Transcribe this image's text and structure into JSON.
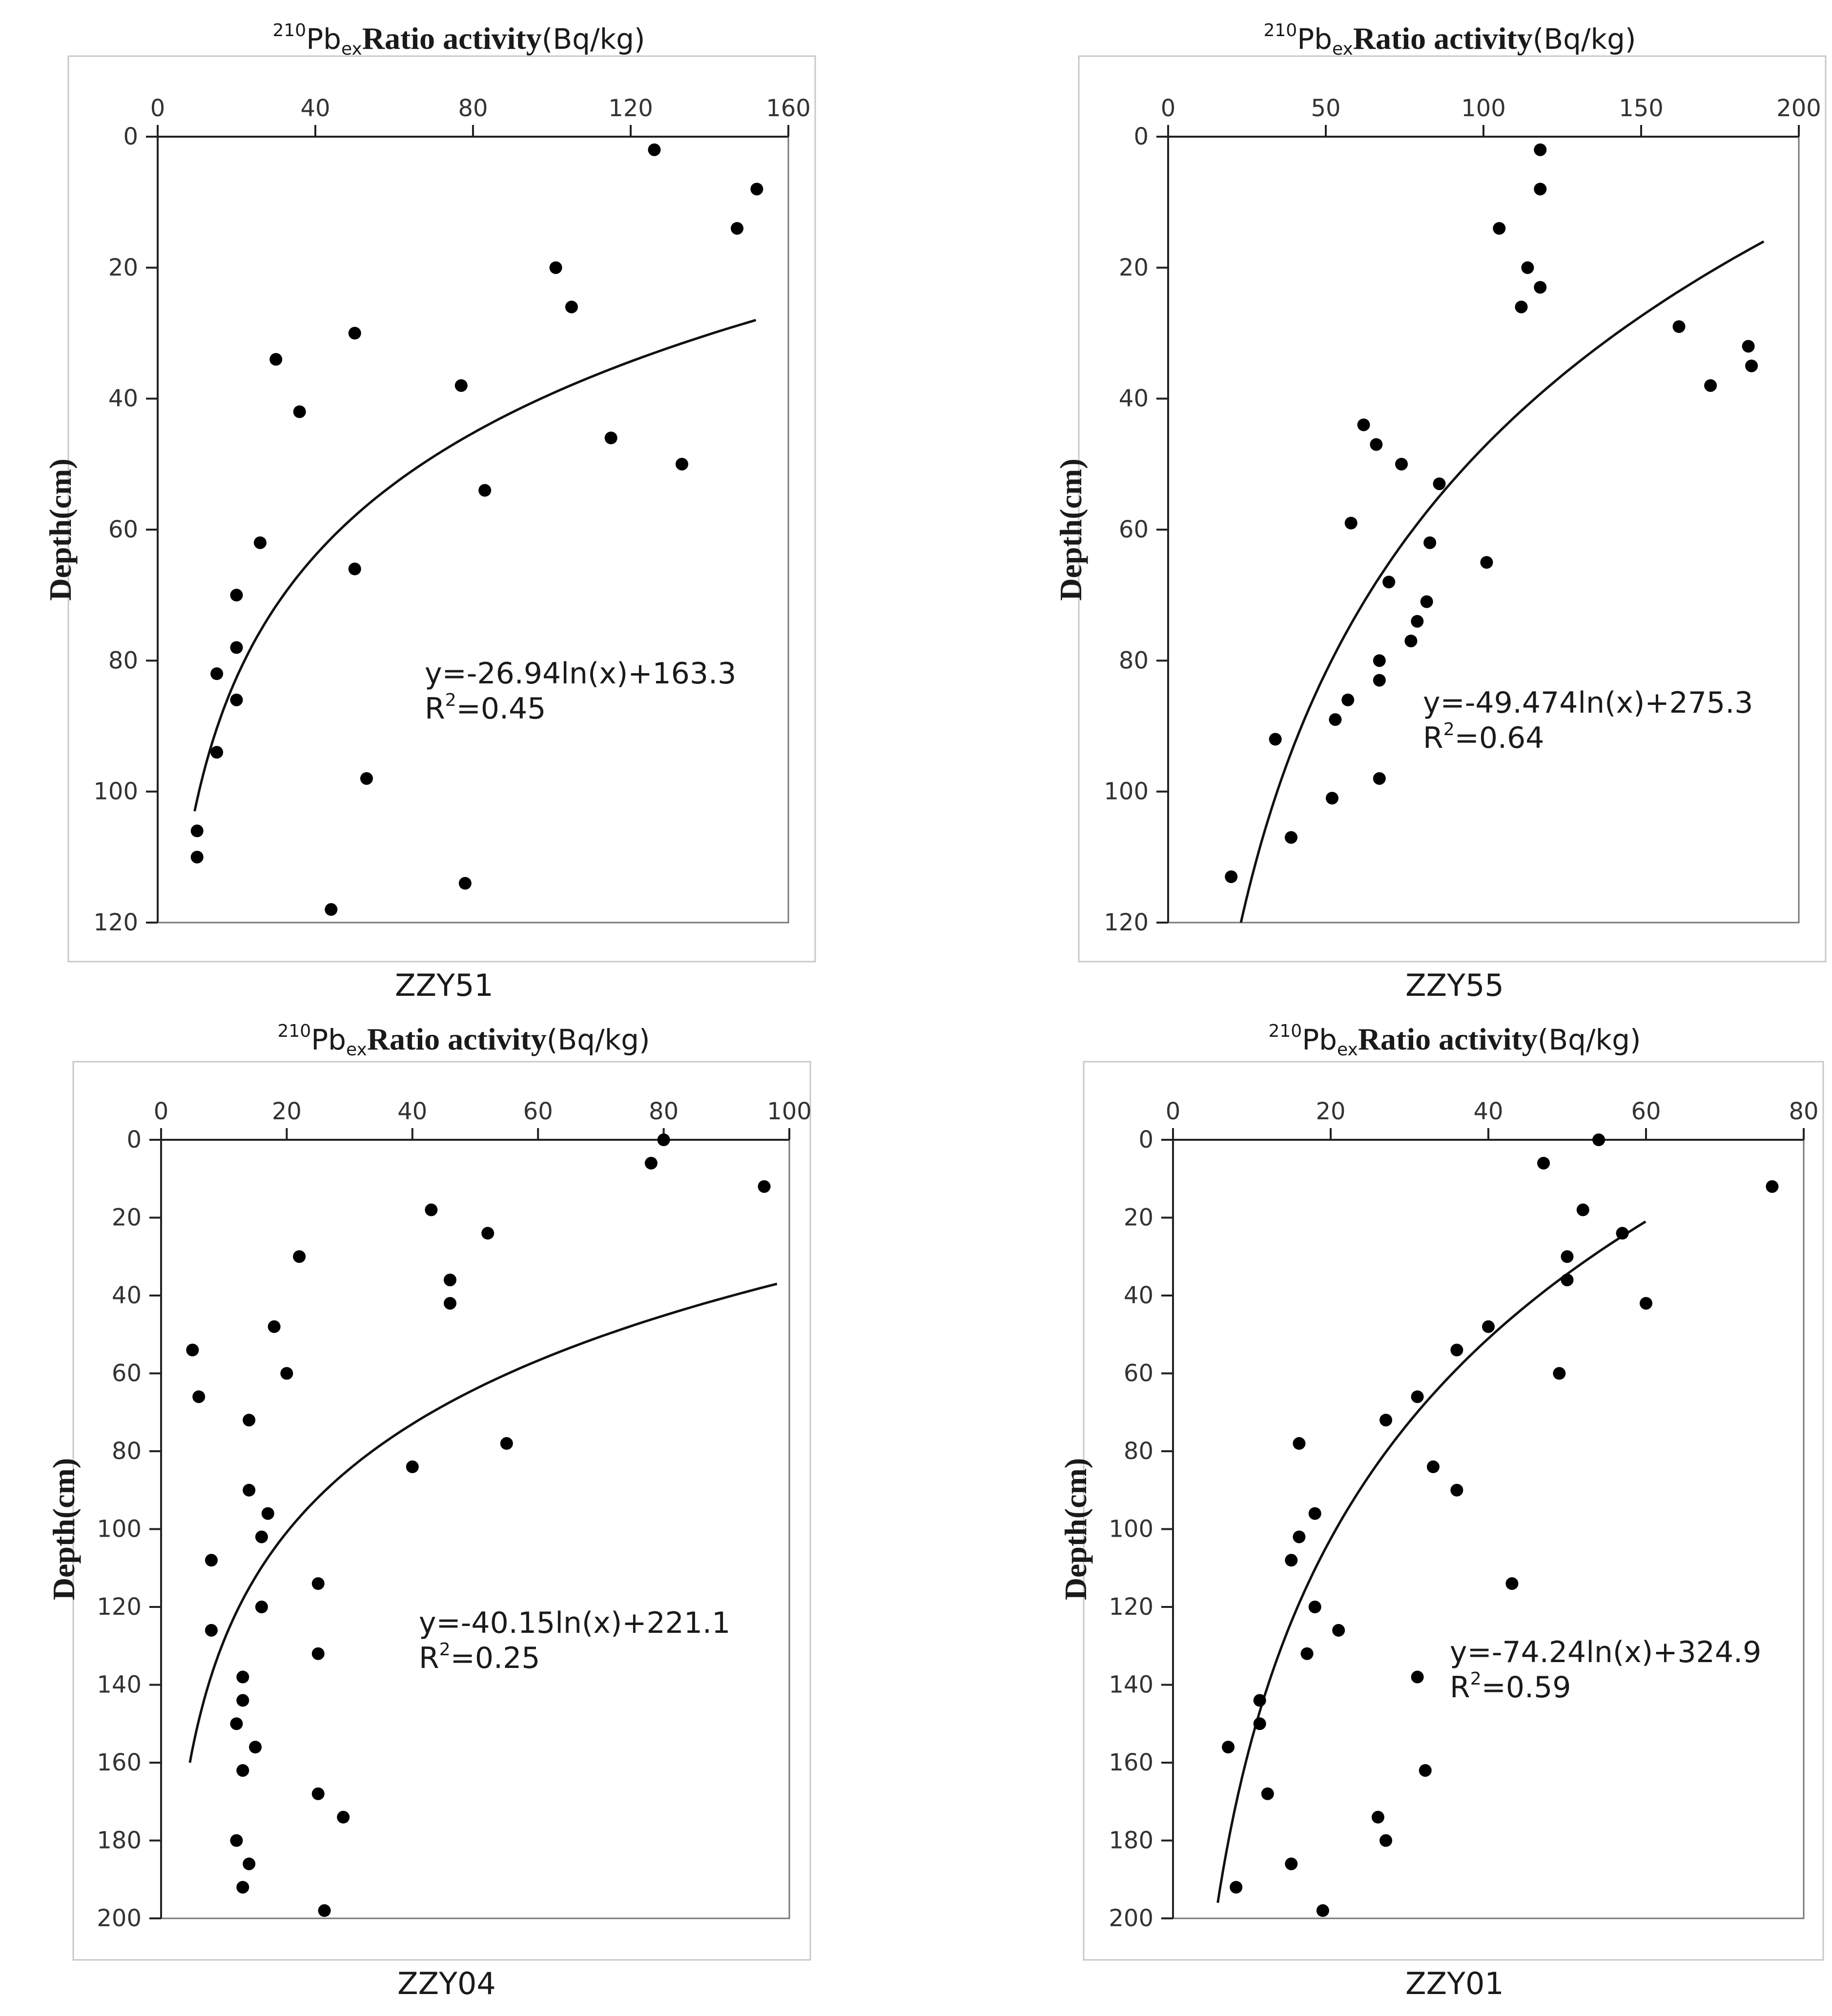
{
  "chart_data": [
    {
      "type": "scatter",
      "caption": "ZZY51",
      "title": {
        "sup": "210",
        "main": "Pb",
        "sub": "ex",
        "bold": "Ratio activity",
        "unit": "(Bq/kg)"
      },
      "ylabel": "Depth(cm)",
      "xlim": [
        0,
        160
      ],
      "ylim": [
        0,
        120
      ],
      "xticks": [
        0,
        40,
        80,
        120,
        160
      ],
      "yticks": [
        0,
        20,
        40,
        60,
        80,
        100,
        120
      ],
      "points": [
        [
          126,
          2
        ],
        [
          152,
          8
        ],
        [
          147,
          14
        ],
        [
          101,
          20
        ],
        [
          105,
          26
        ],
        [
          50,
          30
        ],
        [
          30,
          34
        ],
        [
          77,
          38
        ],
        [
          36,
          42
        ],
        [
          115,
          46
        ],
        [
          133,
          50
        ],
        [
          83,
          54
        ],
        [
          26,
          62
        ],
        [
          50,
          66
        ],
        [
          20,
          70
        ],
        [
          20,
          78
        ],
        [
          15,
          82
        ],
        [
          20,
          86
        ],
        [
          15,
          94
        ],
        [
          53,
          98
        ],
        [
          10,
          106
        ],
        [
          10,
          110
        ],
        [
          78,
          114
        ],
        [
          44,
          118
        ]
      ],
      "fit": {
        "a": -26.94,
        "b": 163.3,
        "ymin": 28,
        "ymax": 103
      },
      "equation": "y=-26.94ln(x)+163.3",
      "r2_prefix": "R",
      "r2_sup": "2",
      "r2_value": "=0.45"
    },
    {
      "type": "scatter",
      "caption": "ZZY55",
      "title": {
        "sup": "210",
        "main": "Pb",
        "sub": "ex",
        "bold": "Ratio activity",
        "unit": "(Bq/kg)"
      },
      "ylabel": "Depth(cm)",
      "xlim": [
        0,
        200
      ],
      "ylim": [
        0,
        120
      ],
      "xticks": [
        0,
        50,
        100,
        150,
        200
      ],
      "yticks": [
        0,
        20,
        40,
        60,
        80,
        100,
        120
      ],
      "points": [
        [
          118,
          2
        ],
        [
          118,
          8
        ],
        [
          105,
          14
        ],
        [
          114,
          20
        ],
        [
          118,
          23
        ],
        [
          112,
          26
        ],
        [
          162,
          29
        ],
        [
          184,
          32
        ],
        [
          185,
          35
        ],
        [
          172,
          38
        ],
        [
          62,
          44
        ],
        [
          66,
          47
        ],
        [
          74,
          50
        ],
        [
          86,
          53
        ],
        [
          58,
          59
        ],
        [
          83,
          62
        ],
        [
          101,
          65
        ],
        [
          70,
          68
        ],
        [
          82,
          71
        ],
        [
          79,
          74
        ],
        [
          77,
          77
        ],
        [
          67,
          80
        ],
        [
          67,
          83
        ],
        [
          57,
          86
        ],
        [
          53,
          89
        ],
        [
          34,
          92
        ],
        [
          67,
          98
        ],
        [
          52,
          101
        ],
        [
          39,
          107
        ],
        [
          20,
          113
        ]
      ],
      "fit": {
        "a": -49.474,
        "b": 275.3,
        "ymin": 16,
        "ymax": 120
      },
      "equation": "y=-49.474ln(x)+275.3",
      "r2_prefix": "R",
      "r2_sup": "2",
      "r2_value": "=0.64"
    },
    {
      "type": "scatter",
      "caption": "ZZY04",
      "title": {
        "sup": "210",
        "main": "Pb",
        "sub": "ex",
        "bold": "Ratio activity",
        "unit": "(Bq/kg)"
      },
      "ylabel": "Depth(cm)",
      "xlim": [
        0,
        100
      ],
      "ylim": [
        0,
        200
      ],
      "xticks": [
        0,
        20,
        40,
        60,
        80,
        100
      ],
      "yticks": [
        0,
        20,
        40,
        60,
        80,
        100,
        120,
        140,
        160,
        180,
        200
      ],
      "points": [
        [
          80,
          0
        ],
        [
          78,
          6
        ],
        [
          96,
          12
        ],
        [
          43,
          18
        ],
        [
          52,
          24
        ],
        [
          22,
          30
        ],
        [
          46,
          36
        ],
        [
          46,
          42
        ],
        [
          18,
          48
        ],
        [
          5,
          54
        ],
        [
          20,
          60
        ],
        [
          6,
          66
        ],
        [
          14,
          72
        ],
        [
          55,
          78
        ],
        [
          40,
          84
        ],
        [
          14,
          90
        ],
        [
          17,
          96
        ],
        [
          16,
          102
        ],
        [
          8,
          108
        ],
        [
          25,
          114
        ],
        [
          16,
          120
        ],
        [
          8,
          126
        ],
        [
          25,
          132
        ],
        [
          13,
          138
        ],
        [
          13,
          144
        ],
        [
          12,
          150
        ],
        [
          15,
          156
        ],
        [
          13,
          162
        ],
        [
          25,
          168
        ],
        [
          29,
          174
        ],
        [
          12,
          180
        ],
        [
          14,
          186
        ],
        [
          13,
          192
        ],
        [
          26,
          198
        ]
      ],
      "fit": {
        "a": -40.15,
        "b": 221.1,
        "ymin": 37,
        "ymax": 160
      },
      "equation": "y=-40.15ln(x)+221.1",
      "r2_prefix": "R",
      "r2_sup": "2",
      "r2_value": "=0.25"
    },
    {
      "type": "scatter",
      "caption": "ZZY01",
      "title": {
        "sup": "210",
        "main": "Pb",
        "sub": "ex",
        "bold": "Ratio activity",
        "unit": "(Bq/kg)"
      },
      "ylabel": "Depth(cm)",
      "xlim": [
        0,
        80
      ],
      "ylim": [
        0,
        200
      ],
      "xticks": [
        0,
        20,
        40,
        60,
        80
      ],
      "yticks": [
        0,
        20,
        40,
        60,
        80,
        100,
        120,
        140,
        160,
        180,
        200
      ],
      "points": [
        [
          54,
          0
        ],
        [
          47,
          6
        ],
        [
          76,
          12
        ],
        [
          52,
          18
        ],
        [
          57,
          24
        ],
        [
          50,
          30
        ],
        [
          50,
          36
        ],
        [
          60,
          42
        ],
        [
          40,
          48
        ],
        [
          36,
          54
        ],
        [
          49,
          60
        ],
        [
          31,
          66
        ],
        [
          27,
          72
        ],
        [
          16,
          78
        ],
        [
          33,
          84
        ],
        [
          36,
          90
        ],
        [
          18,
          96
        ],
        [
          16,
          102
        ],
        [
          15,
          108
        ],
        [
          43,
          114
        ],
        [
          18,
          120
        ],
        [
          21,
          126
        ],
        [
          17,
          132
        ],
        [
          31,
          138
        ],
        [
          11,
          144
        ],
        [
          11,
          150
        ],
        [
          7,
          156
        ],
        [
          32,
          162
        ],
        [
          12,
          168
        ],
        [
          26,
          174
        ],
        [
          27,
          180
        ],
        [
          15,
          186
        ],
        [
          8,
          192
        ],
        [
          19,
          198
        ]
      ],
      "fit": {
        "a": -74.24,
        "b": 324.9,
        "ymin": 21,
        "ymax": 196
      },
      "equation": "y=-74.24ln(x)+324.9",
      "r2_prefix": "R",
      "r2_sup": "2",
      "r2_value": "=0.59"
    }
  ]
}
